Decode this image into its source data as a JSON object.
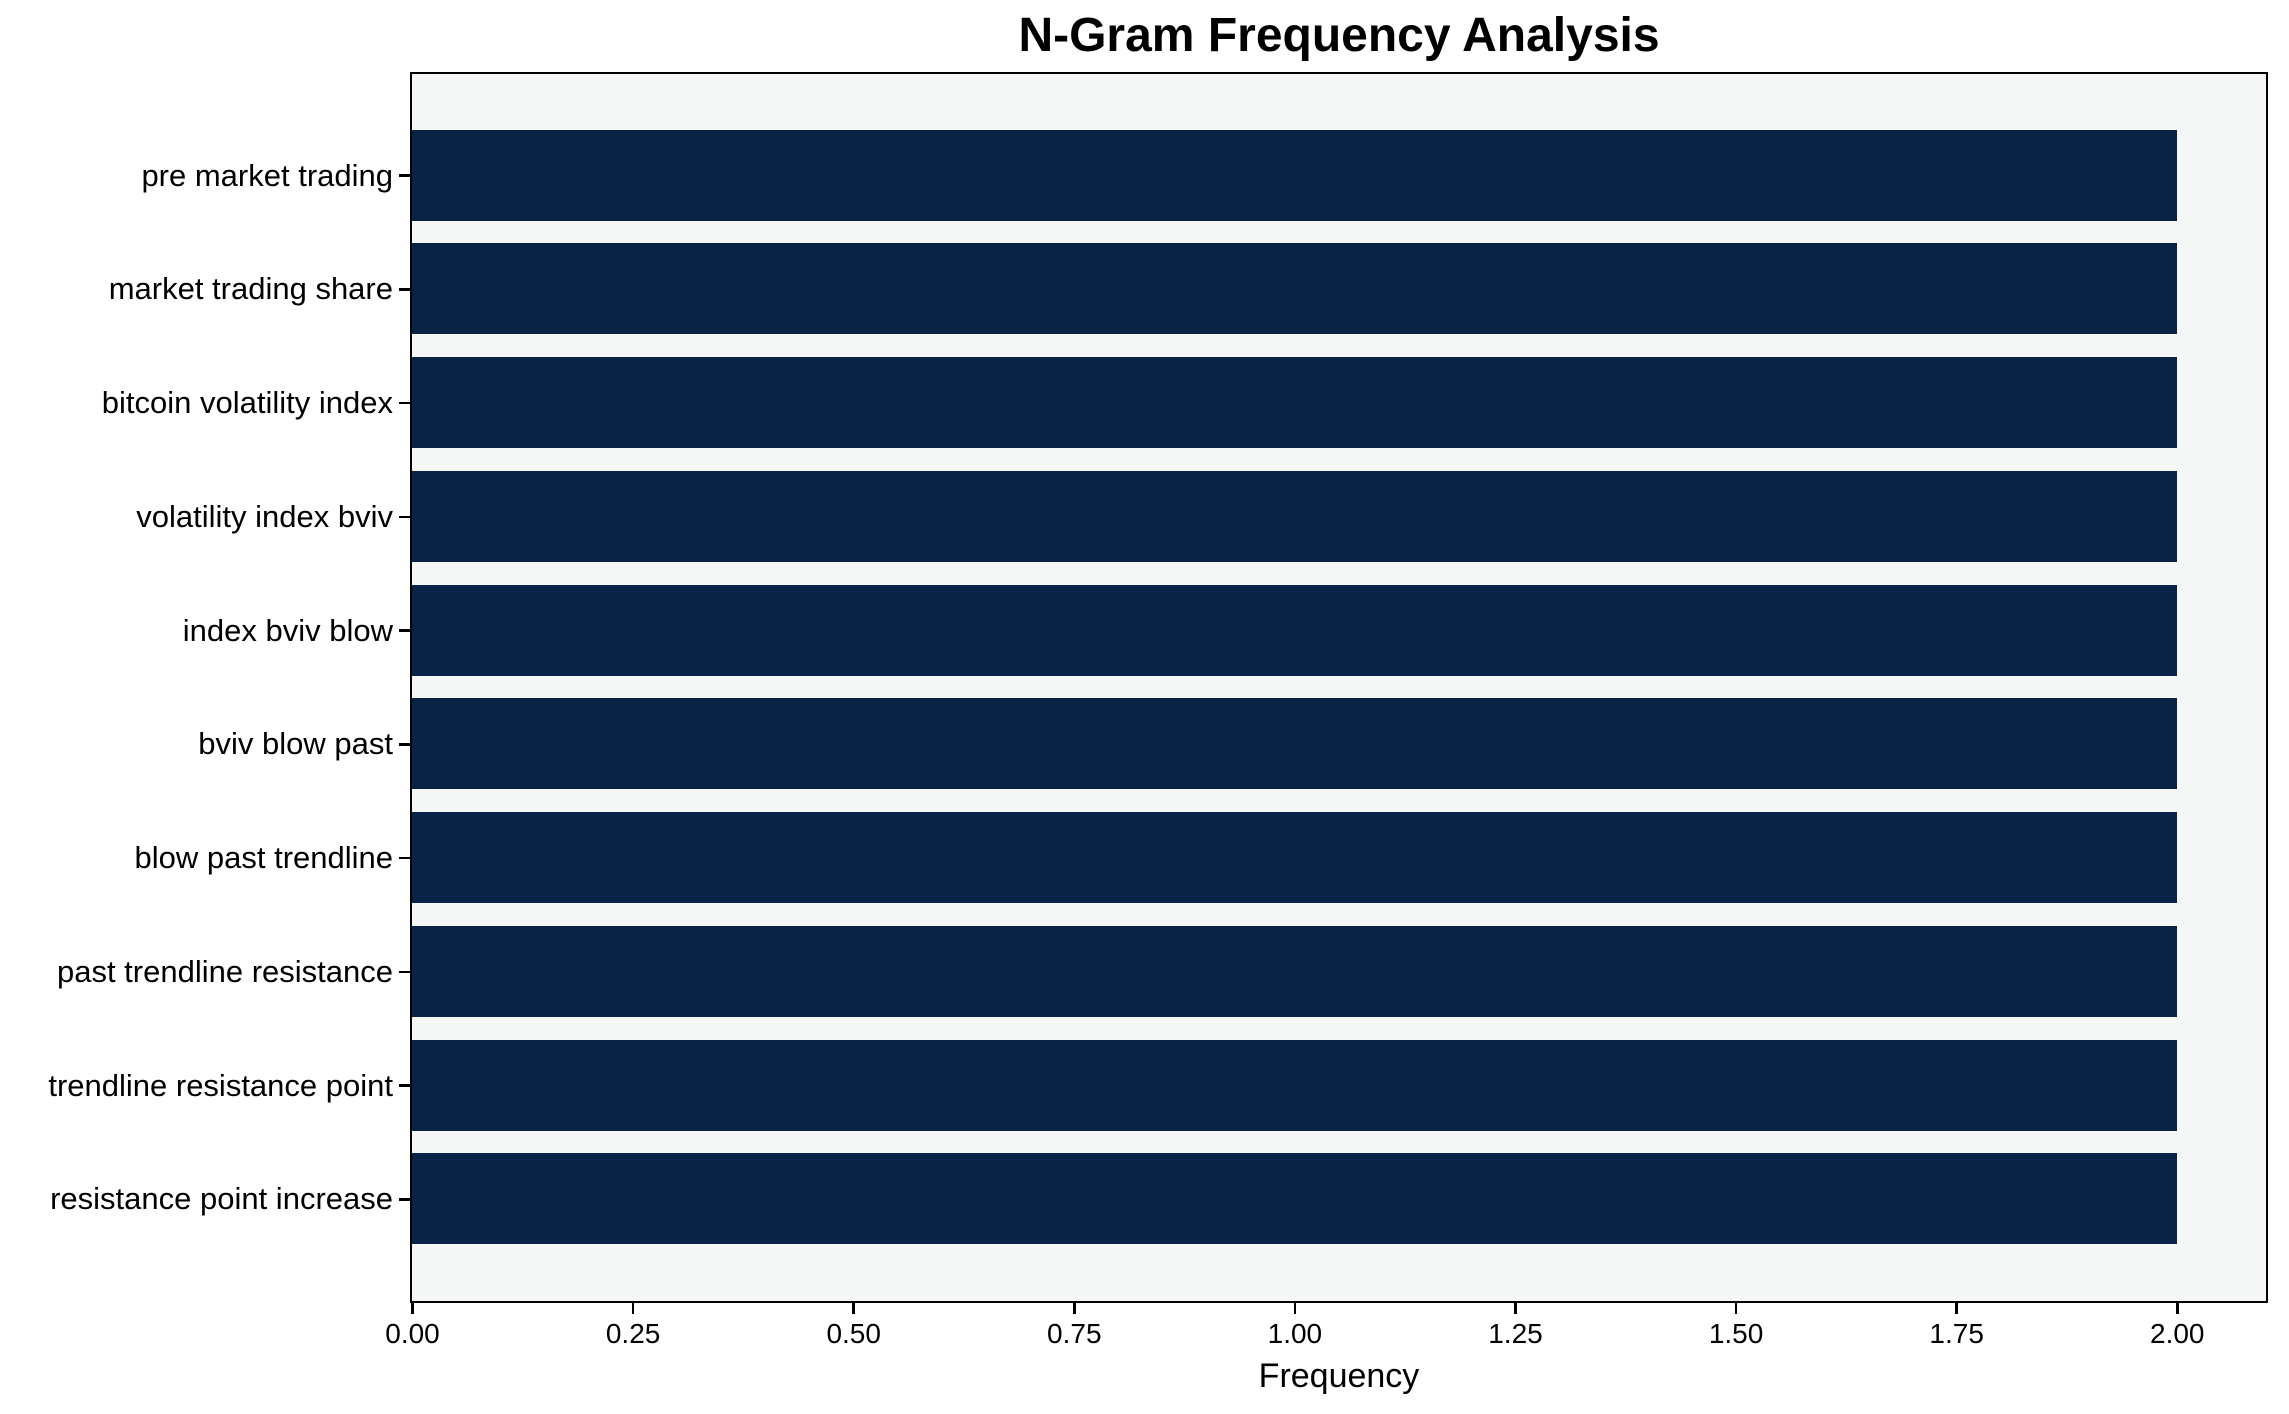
{
  "chart_data": {
    "type": "bar",
    "orientation": "horizontal",
    "title": "N-Gram Frequency Analysis",
    "xlabel": "Frequency",
    "ylabel": "",
    "categories": [
      "pre market trading",
      "market trading share",
      "bitcoin volatility index",
      "volatility index bviv",
      "index bviv blow",
      "bviv blow past",
      "blow past trendline",
      "past trendline resistance",
      "trendline resistance point",
      "resistance point increase"
    ],
    "values": [
      2,
      2,
      2,
      2,
      2,
      2,
      2,
      2,
      2,
      2
    ],
    "xlim": [
      0,
      2.1
    ],
    "xticks": [
      "0.00",
      "0.25",
      "0.50",
      "0.75",
      "1.00",
      "1.25",
      "1.50",
      "1.75",
      "2.00"
    ],
    "xtick_values": [
      0,
      0.25,
      0.5,
      0.75,
      1.0,
      1.25,
      1.5,
      1.75,
      2.0
    ],
    "grid": false,
    "legend": null,
    "colors": {
      "bar": "#082346",
      "plot_background": "#f5f6f6",
      "figure_background": "#ffffff",
      "spine": "#000000",
      "text": "#000000"
    }
  }
}
